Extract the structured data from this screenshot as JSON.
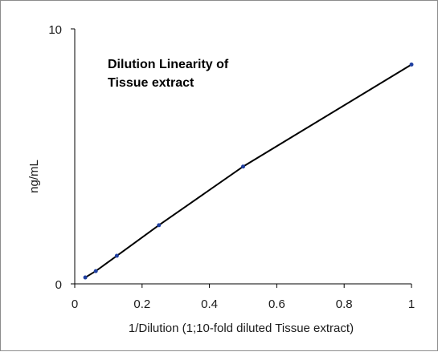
{
  "chart_data": {
    "type": "line",
    "title_lines": [
      "Dilution Linearity of",
      "Tissue extract"
    ],
    "xlabel": "1/Dilution (1;10-fold diluted Tissue extract)",
    "ylabel": "ng/mL",
    "xlim": [
      0,
      1
    ],
    "ylim": [
      0,
      10
    ],
    "x_ticks": [
      {
        "value": 0,
        "label": "0"
      },
      {
        "value": 0.2,
        "label": "0.2"
      },
      {
        "value": 0.4,
        "label": "0.4"
      },
      {
        "value": 0.6,
        "label": "0.6"
      },
      {
        "value": 0.8,
        "label": "0.8"
      },
      {
        "value": 1,
        "label": "1"
      }
    ],
    "y_ticks": [
      {
        "value": 0,
        "label": "0"
      },
      {
        "value": 10,
        "label": "10"
      }
    ],
    "grid": false,
    "series": [
      {
        "x": [
          0.03125,
          0.0625,
          0.125,
          0.25,
          0.5,
          1.0
        ],
        "y": [
          0.25,
          0.5,
          1.1,
          2.3,
          4.6,
          8.6
        ],
        "line_color": "#000000",
        "marker_color": "#1f3fa0"
      }
    ]
  }
}
